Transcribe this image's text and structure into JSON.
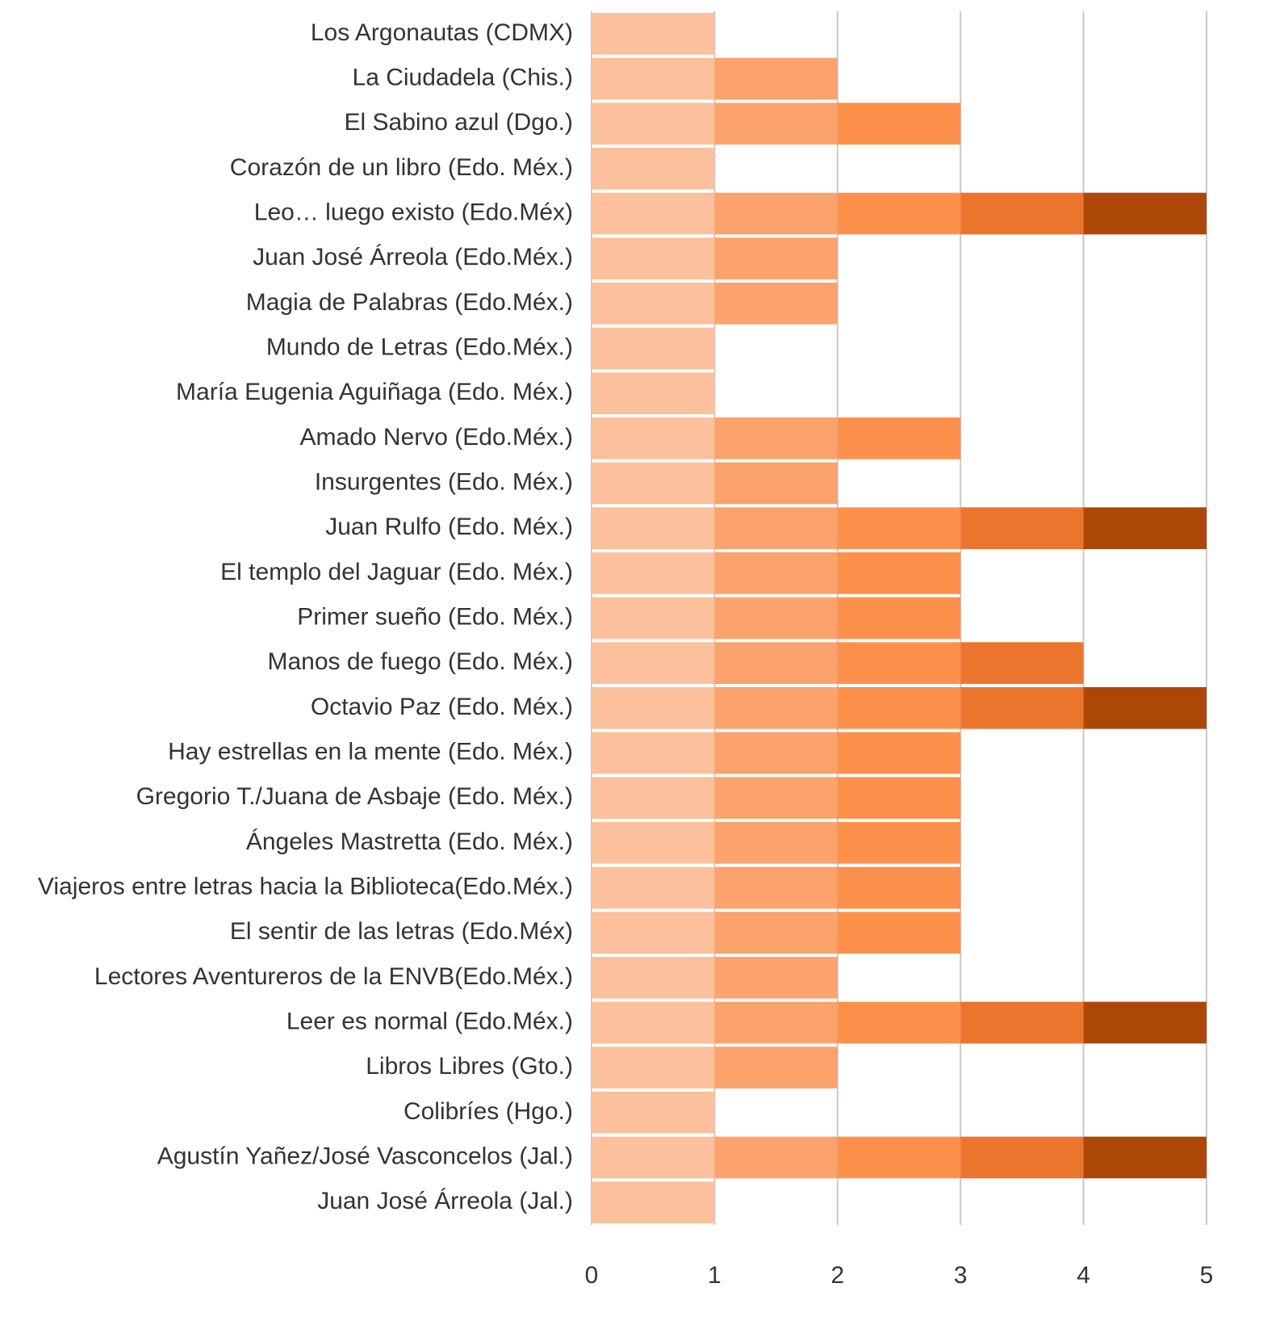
{
  "chart_data": {
    "type": "stacked-bar-horizontal",
    "categories": [
      "Los Argonautas (CDMX)",
      "La Ciudadela (Chis.)",
      "El Sabino azul (Dgo.)",
      "Corazón de un libro (Edo. Méx.)",
      "Leo… luego existo (Edo.Méx)",
      "Juan José Árreola (Edo.Méx.)",
      "Magia de Palabras (Edo.Méx.)",
      "Mundo de Letras (Edo.Méx.)",
      "María Eugenia Aguiñaga (Edo. Méx.)",
      "Amado Nervo (Edo.Méx.)",
      "Insurgentes (Edo. Méx.)",
      "Juan Rulfo (Edo. Méx.)",
      "El templo del Jaguar (Edo. Méx.)",
      "Primer sueño (Edo. Méx.)",
      "Manos de fuego (Edo. Méx.)",
      "Octavio Paz (Edo. Méx.)",
      "Hay estrellas en la mente (Edo. Méx.)",
      "Gregorio T./Juana de Asbaje (Edo. Méx.)",
      "Ángeles Mastretta (Edo. Méx.)",
      "Viajeros entre letras hacia la Biblioteca(Edo.Méx.)",
      "El sentir de las letras (Edo.Méx)",
      "Lectores Aventureros de la ENVB(Edo.Méx.)",
      "Leer es normal (Edo.Méx.)",
      "Libros Libres (Gto.)",
      "Colibríes (Hgo.)",
      "Agustín Yañez/José Vasconcelos (Jal.)",
      "Juan José Árreola (Jal.)"
    ],
    "series": [
      {
        "color": "#fdc09c",
        "values": [
          1,
          1,
          1,
          1,
          1,
          1,
          1,
          1,
          1,
          1,
          1,
          1,
          1,
          1,
          1,
          1,
          1,
          1,
          1,
          1,
          1,
          1,
          1,
          1,
          1,
          1,
          1
        ]
      },
      {
        "color": "#fca26c",
        "values": [
          0,
          1,
          1,
          0,
          1,
          1,
          1,
          0,
          0,
          1,
          1,
          1,
          1,
          1,
          1,
          1,
          1,
          1,
          1,
          1,
          1,
          1,
          1,
          1,
          0,
          1,
          0
        ]
      },
      {
        "color": "#fd914c",
        "values": [
          0,
          0,
          1,
          0,
          1,
          0,
          0,
          0,
          0,
          1,
          0,
          1,
          1,
          1,
          1,
          1,
          1,
          1,
          1,
          1,
          1,
          0,
          1,
          0,
          0,
          1,
          0
        ]
      },
      {
        "color": "#eb752d",
        "values": [
          0,
          0,
          0,
          0,
          1,
          0,
          0,
          0,
          0,
          0,
          0,
          1,
          0,
          0,
          1,
          1,
          0,
          0,
          0,
          0,
          0,
          0,
          1,
          0,
          0,
          1,
          0
        ]
      },
      {
        "color": "#ad4707",
        "values": [
          0,
          0,
          0,
          0,
          1,
          0,
          0,
          0,
          0,
          0,
          0,
          1,
          0,
          0,
          0,
          1,
          0,
          0,
          0,
          0,
          0,
          0,
          1,
          0,
          0,
          1,
          0
        ]
      }
    ],
    "xlim": [
      0,
      5
    ],
    "xticks": [
      0,
      1,
      2,
      3,
      4,
      5
    ],
    "grid": true
  }
}
